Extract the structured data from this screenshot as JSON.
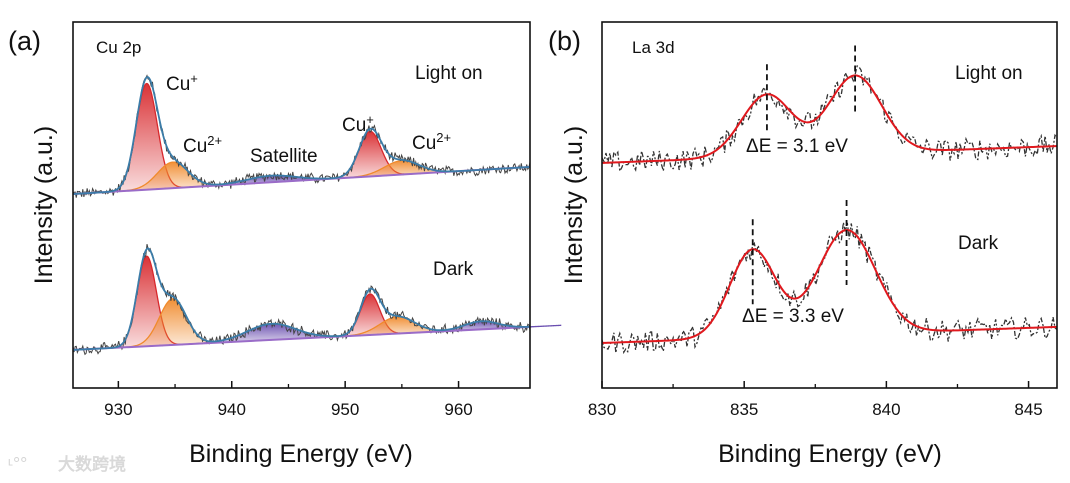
{
  "watermark": "大数跨境",
  "chart_data": [
    {
      "type": "line",
      "panel_label": "(a)",
      "title": "Cu 2p",
      "xlabel": "Binding Energy (eV)",
      "ylabel": "Intensity (a.u.)",
      "xlim": [
        926,
        966.3
      ],
      "ylim": [
        0,
        100
      ],
      "xticks": [
        930,
        940,
        950,
        960
      ],
      "xtick_labels": [
        "930",
        "940",
        "950",
        "960"
      ],
      "minor_xticks": [
        935,
        945,
        955
      ],
      "grid": false,
      "noise": 1.4,
      "peak_labels": {
        "cu_plus": "Cu",
        "cu_plus_sup": "+",
        "cu2_plus": "Cu",
        "cu2_plus_sup": "2+",
        "satellite": "Satellite"
      },
      "spectra": [
        {
          "name": "Light on",
          "baseline": [
            [
              926,
              53
            ],
            [
              966.3,
              60.4
            ]
          ],
          "components": [
            {
              "label": "Cu+",
              "center": 932.5,
              "fwhm": 2.2,
              "height": 29,
              "color": "#d8282c"
            },
            {
              "label": "Cu2+",
              "center": 934.8,
              "fwhm": 3.2,
              "height": 7.1,
              "color": "#f08a2c"
            },
            {
              "label": "Satellite",
              "center": 943.5,
              "fwhm": 5.0,
              "height": 1.8,
              "color": "#6a4fb0"
            },
            {
              "label": "Cu+",
              "center": 952.2,
              "fwhm": 2.3,
              "height": 12.3,
              "color": "#d8282c"
            },
            {
              "label": "Cu2+",
              "center": 955.0,
              "fwhm": 3.6,
              "height": 3.8,
              "color": "#f08a2c"
            }
          ]
        },
        {
          "name": "Dark",
          "baseline": [
            [
              926,
              10.4
            ],
            [
              966.3,
              16.7
            ]
          ],
          "components": [
            {
              "label": "Cu+",
              "center": 932.5,
              "fwhm": 2.0,
              "height": 24.6,
              "color": "#d8282c"
            },
            {
              "label": "Cu2+",
              "center": 934.8,
              "fwhm": 2.8,
              "height": 12.6,
              "color": "#f08a2c"
            },
            {
              "label": "Satellite",
              "center": 943.5,
              "fwhm": 5.0,
              "height": 4.4,
              "color": "#6a4fb0"
            },
            {
              "label": "Cu+",
              "center": 952.2,
              "fwhm": 2.0,
              "height": 11.2,
              "color": "#d8282c"
            },
            {
              "label": "Cu2+",
              "center": 954.6,
              "fwhm": 3.6,
              "height": 4.6,
              "color": "#f08a2c"
            },
            {
              "label": "Satellite",
              "center": 962.0,
              "fwhm": 3.5,
              "height": 2.2,
              "color": "#6a4fb0"
            }
          ]
        }
      ]
    },
    {
      "type": "line",
      "panel_label": "(b)",
      "title": "La 3d",
      "xlabel": "Binding Energy (eV)",
      "ylabel": "Intensity (a.u.)",
      "xlim": [
        830,
        846
      ],
      "ylim": [
        0,
        100
      ],
      "xticks": [
        830,
        835,
        840,
        845
      ],
      "xtick_labels": [
        "830",
        "835",
        "840",
        "845"
      ],
      "minor_xticks": [
        832.5,
        837.5,
        842.5
      ],
      "grid": false,
      "noise": 3.0,
      "spectra": [
        {
          "name": "Light on",
          "annotation": "ΔE = 3.1 eV",
          "baseline": [
            [
              830,
              61.5
            ],
            [
              846,
              66.1
            ]
          ],
          "components": [
            {
              "center": 835.8,
              "fwhm": 2.1,
              "height": 17
            },
            {
              "center": 838.9,
              "fwhm": 2.2,
              "height": 21.3
            }
          ],
          "markers": [
            835.8,
            838.9
          ]
        },
        {
          "name": "Dark",
          "annotation": "ΔE = 3.3 eV",
          "baseline": [
            [
              830,
              12.3
            ],
            [
              846,
              16.7
            ]
          ],
          "components": [
            {
              "center": 835.3,
              "fwhm": 1.9,
              "height": 24
            },
            {
              "center": 838.6,
              "fwhm": 2.4,
              "height": 28.5
            }
          ],
          "markers": [
            835.3,
            838.6
          ]
        }
      ]
    }
  ]
}
